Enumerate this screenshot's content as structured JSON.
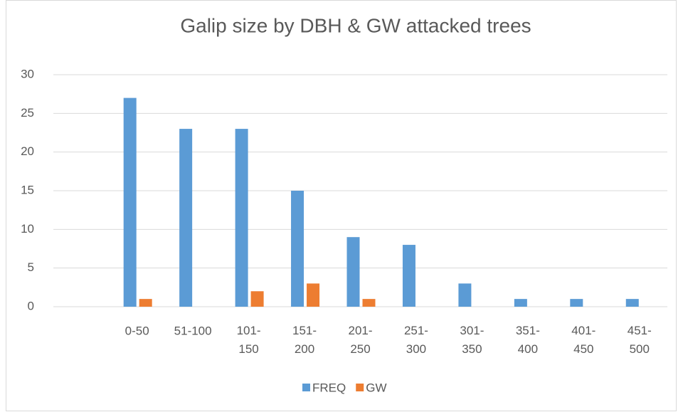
{
  "chart_data": {
    "type": "bar",
    "title": "Galip size by DBH & GW attacked trees",
    "categories": [
      null,
      "0-50",
      "51-100",
      "101-150",
      "151-200",
      "201-250",
      "251-300",
      "301-350",
      "351-400",
      "401-450",
      "451-500"
    ],
    "series": [
      {
        "name": "FREQ",
        "color": "#5b9bd5",
        "values": [
          null,
          27,
          23,
          23,
          15,
          9,
          8,
          3,
          1,
          1,
          1
        ]
      },
      {
        "name": "GW",
        "color": "#ed7d31",
        "values": [
          null,
          1,
          0,
          2,
          3,
          1,
          0,
          0,
          0,
          0,
          0
        ]
      }
    ],
    "ylim": [
      0,
      30
    ],
    "yticks": [
      0,
      5,
      10,
      15,
      20,
      25,
      30
    ],
    "grid": true,
    "legend": "bottom"
  }
}
